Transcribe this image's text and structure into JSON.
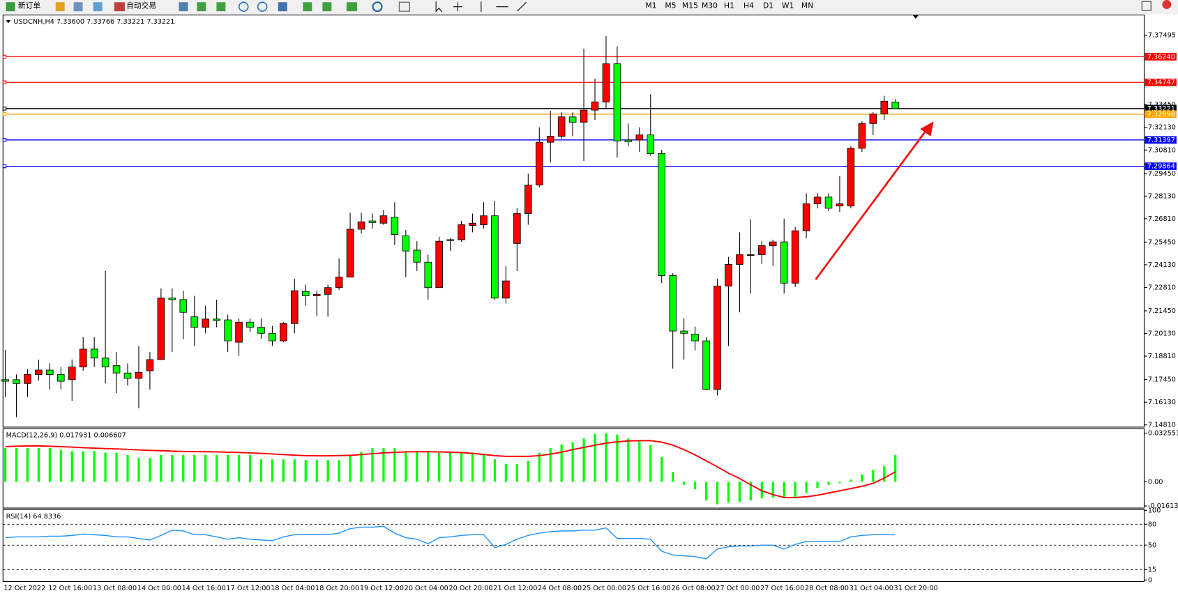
{
  "toolbar": {
    "buttons": [
      "新订单",
      "自动交易"
    ],
    "timeframes": [
      "M1",
      "M5",
      "M15",
      "M30",
      "H1",
      "H4",
      "D1",
      "W1",
      "MN"
    ]
  },
  "chart_data": [
    {
      "type": "candlestick",
      "title": "USDCNH,H4 7.33600 7.33766 7.33221 7.33221",
      "categories": [
        "12 Oct 2022",
        null,
        null,
        null,
        "12 Oct 16:00",
        null,
        null,
        null,
        "13 Oct 08:00",
        null,
        null,
        null,
        "14 Oct 00:00",
        null,
        null,
        null,
        "14 Oct 16:00",
        null,
        null,
        null,
        "17 Oct 12:00",
        null,
        null,
        null,
        "18 Oct 04:00",
        null,
        null,
        null,
        "18 Oct 20:00",
        null,
        null,
        null,
        "19 Oct 12:00",
        null,
        null,
        null,
        "20 Oct 04:00",
        null,
        null,
        null,
        "20 Oct 20:00",
        null,
        null,
        null,
        "21 Oct 12:00",
        null,
        null,
        null,
        "24 Oct 08:00",
        null,
        null,
        null,
        "25 Oct 00:00",
        null,
        null,
        null,
        "25 Oct 16:00",
        null,
        null,
        null,
        "26 Oct 08:00",
        null,
        null,
        null,
        "27 Oct 00:00",
        null,
        null,
        null,
        "27 Oct 16:00",
        null,
        null,
        null,
        "28 Oct 08:00",
        null,
        null,
        null,
        "31 Oct 04:00",
        null,
        null,
        null,
        "31 Oct 20:00"
      ],
      "open": [
        7.1744,
        7.1744,
        7.1722,
        7.1774,
        7.18,
        7.1774,
        7.1744,
        7.1818,
        7.1922,
        7.187,
        7.1826,
        7.1783,
        7.1752,
        7.1796,
        7.1861,
        7.2219,
        7.221,
        7.211,
        7.2049,
        7.2097,
        7.2092,
        7.1962,
        7.2079,
        7.2049,
        7.2014,
        7.197,
        7.2071,
        7.2258,
        7.2232,
        7.2241,
        7.228,
        7.2341,
        7.262,
        7.2668,
        7.2655,
        7.269,
        7.2581,
        7.2498,
        7.2428,
        7.228,
        7.2554,
        7.2559,
        7.2642,
        7.2646,
        7.2698,
        7.2219,
        7.2537,
        7.2711,
        7.2877,
        7.3126,
        7.3161,
        7.3274,
        7.3243,
        7.3313,
        7.3361,
        7.3583,
        7.3139,
        7.3139,
        7.3169,
        7.306,
        7.235,
        7.2027,
        7.2009,
        7.197,
        7.1687,
        7.2289,
        7.2415,
        7.2467,
        7.2472,
        7.2524,
        7.2546,
        7.2306,
        7.2611,
        7.2768,
        7.2807,
        7.2755,
        7.2755,
        7.3091,
        7.3235,
        7.3291,
        7.336
      ],
      "high": [
        7.1918,
        7.1774,
        7.1805,
        7.1861,
        7.1839,
        7.1818,
        7.1861,
        7.1992,
        7.1992,
        7.2376,
        7.1905,
        7.1839,
        7.194,
        7.1905,
        7.2275,
        7.2275,
        7.2262,
        7.2232,
        7.2175,
        7.221,
        7.2123,
        7.2101,
        7.2101,
        7.2101,
        7.2057,
        7.2079,
        7.2332,
        7.2297,
        7.2262,
        7.2297,
        7.245,
        7.2716,
        7.2716,
        7.2711,
        7.2733,
        7.2777,
        7.2615,
        7.255,
        7.2472,
        7.2576,
        7.2568,
        7.2668,
        7.2711,
        7.2777,
        7.2786,
        7.2406,
        7.2742,
        7.2943,
        7.3213,
        7.3309,
        7.33,
        7.33,
        7.3671,
        7.3496,
        7.3745,
        7.3684,
        7.3235,
        7.3213,
        7.3405,
        7.3082,
        7.2363,
        7.2101,
        7.2053,
        7.1992,
        7.2332,
        7.2459,
        7.2602,
        7.2677,
        7.255,
        7.2559,
        7.2681,
        7.2633,
        7.2829,
        7.2829,
        7.2829,
        7.2929,
        7.3104,
        7.3248,
        7.33,
        7.3396,
        7.33766
      ],
      "low": [
        7.1643,
        7.1526,
        7.1643,
        7.1739,
        7.1687,
        7.1687,
        7.1621,
        7.1796,
        7.1818,
        7.1722,
        7.1665,
        7.1709,
        7.1578,
        7.1687,
        7.1861,
        7.1905,
        7.1979,
        7.194,
        7.2014,
        7.2049,
        7.1905,
        7.1883,
        7.2023,
        7.1983,
        7.194,
        7.1962,
        7.2014,
        7.2175,
        7.2114,
        7.211,
        7.2267,
        7.2341,
        7.2594,
        7.2624,
        7.2646,
        7.2528,
        7.2341,
        7.2376,
        7.221,
        7.228,
        7.2493,
        7.2546,
        7.2602,
        7.2624,
        7.221,
        7.2188,
        7.2376,
        7.2646,
        7.2864,
        7.3008,
        7.3147,
        7.3161,
        7.3017,
        7.3256,
        7.3322,
        7.3038,
        7.3104,
        7.3069,
        7.3047,
        7.2306,
        7.1809,
        7.1861,
        7.1914,
        7.1682,
        7.1652,
        7.194,
        7.2136,
        7.2245,
        7.2419,
        7.2406,
        7.2245,
        7.2284,
        7.2568,
        7.2742,
        7.2725,
        7.272,
        7.2742,
        7.3069,
        7.3169,
        7.3256,
        7.33221
      ],
      "close": [
        7.1735,
        7.1722,
        7.1774,
        7.18,
        7.1774,
        7.1735,
        7.1818,
        7.1922,
        7.187,
        7.1818,
        7.1783,
        7.1752,
        7.1787,
        7.1861,
        7.2219,
        7.221,
        7.2136,
        7.2049,
        7.2097,
        7.2088,
        7.197,
        7.2079,
        7.2049,
        7.2014,
        7.197,
        7.2071,
        7.2262,
        7.2232,
        7.2241,
        7.228,
        7.2341,
        7.262,
        7.2663,
        7.2659,
        7.2698,
        7.2589,
        7.2493,
        7.2428,
        7.228,
        7.255,
        7.2559,
        7.2646,
        7.2655,
        7.2698,
        7.2219,
        7.2319,
        7.2711,
        7.2877,
        7.3126,
        7.3161,
        7.3274,
        7.3243,
        7.3313,
        7.3361,
        7.3583,
        7.3134,
        7.313,
        7.3169,
        7.306,
        7.235,
        7.2027,
        7.2014,
        7.197,
        7.1687,
        7.2289,
        7.2415,
        7.2472,
        7.2472,
        7.2524,
        7.2546,
        7.2306,
        7.2611,
        7.2768,
        7.2807,
        7.2742,
        7.2768,
        7.3091,
        7.3235,
        7.3291,
        7.3365,
        7.33221
      ],
      "colors": {
        "up": "#ff0000",
        "down": "#00ff00",
        "wick": "#000000"
      },
      "ylim": [
        7.1481,
        7.3867
      ],
      "yticks": [
        7.37495,
        {
          "value": 7.3345,
          "label": "7.33450"
        },
        {
          "value": 7.3213,
          "label": "7.32130"
        },
        {
          "value": 7.3081,
          "label": "7.30810"
        },
        {
          "value": 7.2945,
          "label": "7.29450"
        },
        {
          "value": 7.2813,
          "label": "7.28130"
        },
        {
          "value": 7.2681,
          "label": "7.26810"
        },
        {
          "value": 7.2545,
          "label": "7.25450"
        },
        {
          "value": 7.2413,
          "label": "7.24130"
        },
        {
          "value": 7.2281,
          "label": "7.22810"
        },
        {
          "value": 7.2145,
          "label": "7.21450"
        },
        {
          "value": 7.2013,
          "label": "7.20130"
        },
        {
          "value": 7.1881,
          "label": "7.18810"
        },
        {
          "value": 7.1745,
          "label": "7.17450"
        },
        {
          "value": 7.1613,
          "label": "7.16130"
        },
        {
          "value": 7.1481,
          "label": "7.14810"
        }
      ],
      "levels": [
        {
          "value": 7.3624,
          "label": "7.36240",
          "color": "#ff0000"
        },
        {
          "value": 7.34747,
          "label": "7.34747",
          "color": "#ff0000"
        },
        {
          "value": 7.33221,
          "label": "7.33221",
          "color": "#000000"
        },
        {
          "value": 7.32898,
          "label": "7.32898",
          "color": "#ffa500"
        },
        {
          "value": 7.31397,
          "label": "7.31397",
          "color": "#0000ff"
        },
        {
          "value": 7.29864,
          "label": "7.29864",
          "color": "#0000ff"
        }
      ]
    },
    {
      "type": "macd",
      "title": "MACD(12,26,9) 0.017931 0.006607",
      "series": [
        {
          "color": "#00ff00",
          "values": [
            0.0225,
            0.0225,
            0.0225,
            0.0225,
            0.0225,
            0.0215,
            0.0205,
            0.0205,
            0.0205,
            0.0195,
            0.0195,
            0.018,
            0.016,
            0.016,
            0.018,
            0.018,
            0.018,
            0.018,
            0.018,
            0.018,
            0.018,
            0.018,
            0.018,
            0.015,
            0.015,
            0.015,
            0.015,
            0.0145,
            0.0145,
            0.0145,
            0.0145,
            0.018,
            0.02,
            0.0225,
            0.0225,
            0.0225,
            0.0205,
            0.0205,
            0.0205,
            0.0195,
            0.0195,
            0.0195,
            0.0195,
            0.018,
            0.015,
            0.012,
            0.012,
            0.014,
            0.0195,
            0.0225,
            0.025,
            0.0265,
            0.029,
            0.032,
            0.0325,
            0.0315,
            0.029,
            0.027,
            0.0245,
            0.0165,
            0.0065,
            -0.002,
            -0.005,
            -0.0125,
            -0.015,
            -0.014,
            -0.0135,
            -0.0125,
            -0.011,
            -0.0105,
            -0.0105,
            -0.01,
            -0.0075,
            -0.004,
            -0.002,
            -0.001,
            0.0015,
            0.005,
            0.008,
            0.0105,
            0.017931
          ]
        },
        {
          "color": "#ff0000",
          "values": [
            0.0235,
            0.0238,
            0.024,
            0.024,
            0.0238,
            0.0235,
            0.0232,
            0.0228,
            0.0225,
            0.0222,
            0.022,
            0.0217,
            0.0213,
            0.021,
            0.0208,
            0.0205,
            0.0203,
            0.0202,
            0.0201,
            0.02,
            0.0198,
            0.0196,
            0.0193,
            0.019,
            0.0186,
            0.0182,
            0.0178,
            0.0175,
            0.0174,
            0.0174,
            0.0175,
            0.0177,
            0.0182,
            0.0188,
            0.0193,
            0.0197,
            0.02,
            0.0201,
            0.0201,
            0.02,
            0.0198,
            0.0195,
            0.019,
            0.0183,
            0.0175,
            0.017,
            0.017,
            0.017,
            0.0175,
            0.0185,
            0.0198,
            0.0215,
            0.023,
            0.0245,
            0.0258,
            0.0267,
            0.0273,
            0.0275,
            0.0275,
            0.0265,
            0.0245,
            0.0215,
            0.018,
            0.014,
            0.01,
            0.0058,
            0.0022,
            -0.002,
            -0.006,
            -0.0085,
            -0.0105,
            -0.0105,
            -0.01,
            -0.009,
            -0.0075,
            -0.006,
            -0.0045,
            -0.003,
            -0.001,
            0.0025,
            0.006607
          ]
        }
      ],
      "ylim": [
        -0.01703,
        0.03505
      ],
      "yticks": [
        0.032551,
        {
          "value": 0,
          "label": "0.00"
        },
        -0.016137
      ]
    },
    {
      "type": "line",
      "title": "RSI(14) 64.8336",
      "series": [
        {
          "color": "#1e90ff",
          "values": [
            60.7,
            61.8,
            61.8,
            61.8,
            62.8,
            62.8,
            63.9,
            66,
            64.9,
            63.9,
            61.8,
            61.8,
            59.6,
            57.4,
            63.9,
            71.5,
            70.4,
            65,
            65,
            61.8,
            58.5,
            60.7,
            58.5,
            57.4,
            56.3,
            61.8,
            65,
            65,
            65,
            65,
            67.2,
            73.7,
            75.8,
            75.8,
            77,
            67.2,
            60.7,
            58.5,
            52,
            60.7,
            61.8,
            64,
            65,
            65,
            46.6,
            51,
            58.5,
            64,
            67.2,
            69.3,
            70.4,
            70.4,
            71.5,
            71.5,
            74.8,
            59.6,
            59.6,
            59.6,
            58.5,
            41.2,
            35.8,
            34.7,
            33.6,
            30.3,
            44.4,
            47.7,
            48.8,
            48.8,
            49.9,
            49.9,
            44.4,
            51,
            55.3,
            55.3,
            55.3,
            55.3,
            61.8,
            64,
            65,
            65,
            64.8336
          ]
        }
      ],
      "ylim": [
        0,
        100
      ],
      "yticks": [
        100,
        80,
        50,
        15,
        0
      ],
      "grid": "dashed"
    }
  ]
}
